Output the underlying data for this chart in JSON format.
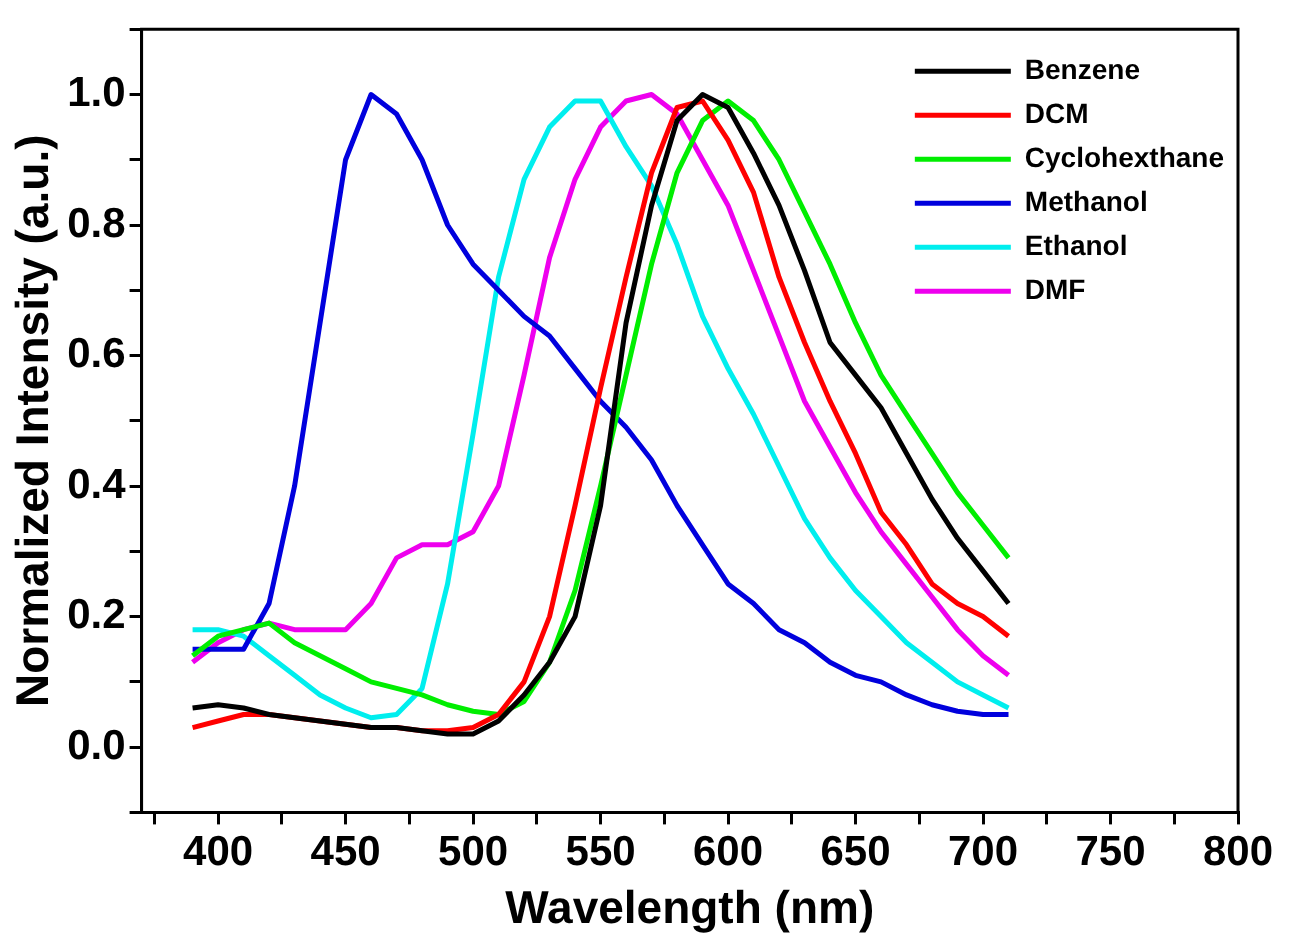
{
  "chart_data": {
    "type": "line",
    "xlabel": "Wavelength (nm)",
    "ylabel": "Normalized Intensity (a.u.)",
    "x": [
      390,
      400,
      410,
      420,
      430,
      440,
      450,
      460,
      470,
      480,
      490,
      500,
      510,
      520,
      530,
      540,
      550,
      560,
      570,
      580,
      590,
      600,
      610,
      620,
      630,
      640,
      650,
      660,
      670,
      680,
      690,
      700,
      710
    ],
    "xlim": [
      370,
      800
    ],
    "xticks": [
      {
        "value": 375,
        "label": null
      },
      400,
      {
        "value": 425,
        "label": null
      },
      450,
      {
        "value": 475,
        "label": null
      },
      500,
      {
        "value": 525,
        "label": null
      },
      550,
      {
        "value": 575,
        "label": null
      },
      600,
      {
        "value": 625,
        "label": null
      },
      650,
      {
        "value": 675,
        "label": null
      },
      700,
      {
        "value": 725,
        "label": null
      },
      750,
      {
        "value": 775,
        "label": null
      },
      800
    ],
    "ylim": [
      -0.1,
      1.1
    ],
    "yticks": [
      {
        "value": -0.1,
        "label": null
      },
      {
        "value": 0,
        "label": "0.0"
      },
      {
        "value": 0.1,
        "label": null
      },
      0.2,
      {
        "value": 0.3,
        "label": null
      },
      0.4,
      {
        "value": 0.5,
        "label": null
      },
      0.6,
      {
        "value": 0.7,
        "label": null
      },
      0.8,
      {
        "value": 0.9,
        "label": null
      },
      {
        "value": 1,
        "label": "1.0"
      },
      {
        "value": 1.1,
        "label": null
      }
    ],
    "grid": false,
    "legend": "top right",
    "marker": "none",
    "line_style": "solid",
    "series": [
      {
        "name": "Benzene",
        "color": "#000000",
        "values": [
          0.06,
          0.065,
          0.06,
          0.05,
          0.045,
          0.04,
          0.035,
          0.03,
          0.03,
          0.025,
          0.02,
          0.02,
          0.04,
          0.08,
          0.13,
          0.2,
          0.37,
          0.65,
          0.83,
          0.96,
          1,
          0.98,
          0.91,
          0.83,
          0.73,
          0.62,
          0.57,
          0.52,
          0.45,
          0.38,
          0.32,
          0.27,
          0.22
        ]
      },
      {
        "name": "DCM",
        "color": "#ff0000",
        "values": [
          0.03,
          0.04,
          0.05,
          0.05,
          0.045,
          0.04,
          0.035,
          0.03,
          0.03,
          0.025,
          0.025,
          0.03,
          0.05,
          0.1,
          0.2,
          0.37,
          0.55,
          0.72,
          0.88,
          0.98,
          0.99,
          0.93,
          0.85,
          0.72,
          0.62,
          0.53,
          0.45,
          0.36,
          0.31,
          0.25,
          0.22,
          0.2,
          0.17
        ]
      },
      {
        "name": "Cyclohexthane",
        "color": "#00ee00",
        "values": [
          0.14,
          0.17,
          0.18,
          0.19,
          0.16,
          0.14,
          0.12,
          0.1,
          0.09,
          0.08,
          0.065,
          0.055,
          0.05,
          0.07,
          0.13,
          0.24,
          0.4,
          0.57,
          0.74,
          0.88,
          0.96,
          0.99,
          0.96,
          0.9,
          0.82,
          0.74,
          0.65,
          0.57,
          0.51,
          0.45,
          0.39,
          0.34,
          0.29
        ]
      },
      {
        "name": "Methanol",
        "color": "#0000dd",
        "values": [
          0.15,
          0.15,
          0.15,
          0.22,
          0.4,
          0.65,
          0.9,
          1,
          0.97,
          0.9,
          0.8,
          0.74,
          0.7,
          0.66,
          0.63,
          0.58,
          0.53,
          0.49,
          0.44,
          0.37,
          0.31,
          0.25,
          0.22,
          0.18,
          0.16,
          0.13,
          0.11,
          0.1,
          0.08,
          0.065,
          0.055,
          0.05,
          0.05
        ]
      },
      {
        "name": "Ethanol",
        "color": "#00eeee",
        "values": [
          0.18,
          0.18,
          0.17,
          0.14,
          0.11,
          0.08,
          0.06,
          0.045,
          0.05,
          0.09,
          0.25,
          0.48,
          0.72,
          0.87,
          0.95,
          0.99,
          0.99,
          0.92,
          0.86,
          0.77,
          0.66,
          0.58,
          0.51,
          0.43,
          0.35,
          0.29,
          0.24,
          0.2,
          0.16,
          0.13,
          0.1,
          0.08,
          0.06
        ]
      },
      {
        "name": "DMF",
        "color": "#ee00ee",
        "values": [
          0.13,
          0.16,
          0.18,
          0.19,
          0.18,
          0.18,
          0.18,
          0.22,
          0.29,
          0.31,
          0.31,
          0.33,
          0.4,
          0.57,
          0.75,
          0.87,
          0.95,
          0.99,
          1,
          0.97,
          0.9,
          0.83,
          0.73,
          0.63,
          0.53,
          0.46,
          0.39,
          0.33,
          0.28,
          0.23,
          0.18,
          0.14,
          0.11
        ]
      }
    ]
  }
}
